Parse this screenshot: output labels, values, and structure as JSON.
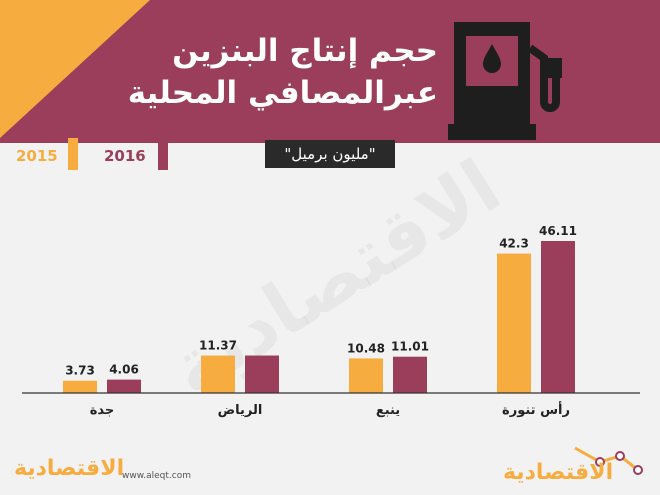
{
  "header": {
    "title_line1": "حجم إنتاج البنزين",
    "title_line2": "عبرالمصافي المحلية",
    "unit": "\"مليون برميل\""
  },
  "legend": {
    "items": [
      {
        "label": "2016",
        "color": "#9a3e5c"
      },
      {
        "label": "2015",
        "color": "#f6ac3f"
      }
    ]
  },
  "chart_data": {
    "type": "bar",
    "categories": [
      "جدة",
      "الرياض",
      "ينبع",
      "رأس تنورة"
    ],
    "series": [
      {
        "name": "2015",
        "color": "#f6ac3f",
        "values": [
          3.73,
          11.37,
          10.48,
          42.3
        ]
      },
      {
        "name": "2016",
        "color": "#9a3e5c",
        "values": [
          4.06,
          null,
          11.01,
          46.11
        ]
      }
    ],
    "data_labels": [
      [
        "3.73",
        "4.06"
      ],
      [
        "11.37",
        ""
      ],
      [
        "10.48",
        "11.01"
      ],
      [
        "42.3",
        "46.11"
      ]
    ],
    "ylim": [
      0,
      46.11
    ],
    "legend_position": "top-left"
  },
  "watermark": "الاقتصادية",
  "footer": {
    "logo_left": "الاقتصادية",
    "url": "www.aleqt.com",
    "logo_right": "الاقتصادية"
  }
}
